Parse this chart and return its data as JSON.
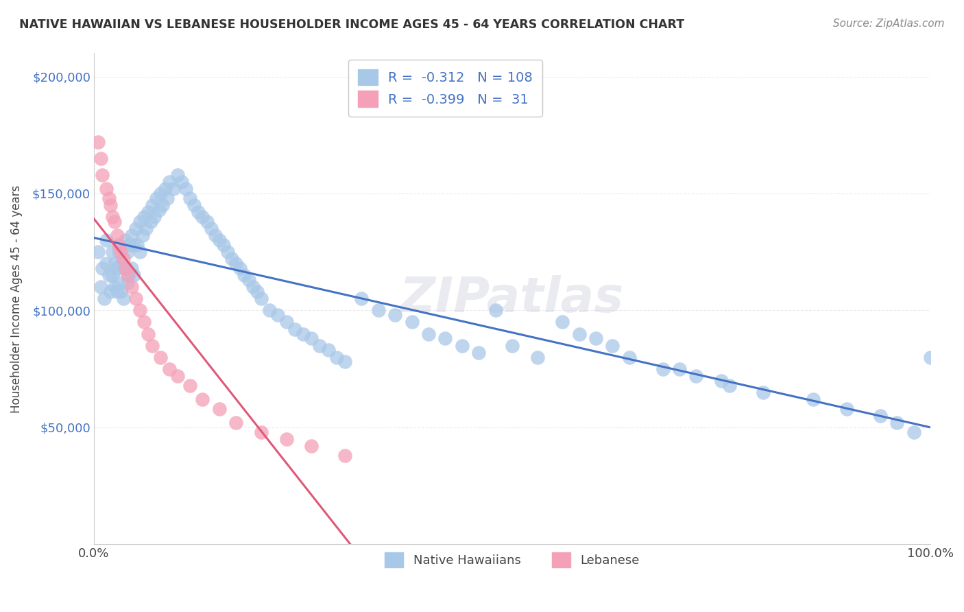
{
  "title": "NATIVE HAWAIIAN VS LEBANESE HOUSEHOLDER INCOME AGES 45 - 64 YEARS CORRELATION CHART",
  "source": "Source: ZipAtlas.com",
  "ylabel": "Householder Income Ages 45 - 64 years",
  "xlim": [
    0,
    1.0
  ],
  "ylim": [
    0,
    210000
  ],
  "ytick_labels": [
    "$50,000",
    "$100,000",
    "$150,000",
    "$200,000"
  ],
  "ytick_values": [
    50000,
    100000,
    150000,
    200000
  ],
  "background_color": "#ffffff",
  "grid_color": "#e8e8ee",
  "blue_color": "#a8c8e8",
  "pink_color": "#f4a0b8",
  "blue_line_color": "#4472c4",
  "pink_line_color": "#e05878",
  "dashed_line_color": "#c8c8d8",
  "native_hawaiian_x": [
    0.005,
    0.008,
    0.01,
    0.012,
    0.015,
    0.015,
    0.018,
    0.02,
    0.022,
    0.022,
    0.025,
    0.025,
    0.028,
    0.028,
    0.03,
    0.03,
    0.032,
    0.032,
    0.035,
    0.035,
    0.038,
    0.038,
    0.04,
    0.04,
    0.042,
    0.042,
    0.045,
    0.045,
    0.048,
    0.048,
    0.05,
    0.052,
    0.055,
    0.055,
    0.058,
    0.06,
    0.062,
    0.065,
    0.068,
    0.07,
    0.072,
    0.075,
    0.078,
    0.08,
    0.082,
    0.085,
    0.088,
    0.09,
    0.095,
    0.1,
    0.105,
    0.11,
    0.115,
    0.12,
    0.125,
    0.13,
    0.135,
    0.14,
    0.145,
    0.15,
    0.155,
    0.16,
    0.165,
    0.17,
    0.175,
    0.18,
    0.185,
    0.19,
    0.195,
    0.2,
    0.21,
    0.22,
    0.23,
    0.24,
    0.25,
    0.26,
    0.27,
    0.28,
    0.29,
    0.3,
    0.32,
    0.34,
    0.36,
    0.38,
    0.4,
    0.42,
    0.44,
    0.46,
    0.48,
    0.5,
    0.53,
    0.56,
    0.6,
    0.64,
    0.68,
    0.72,
    0.76,
    0.8,
    0.86,
    0.9,
    0.94,
    0.96,
    0.98,
    1.0,
    0.58,
    0.62,
    0.7,
    0.75
  ],
  "native_hawaiian_y": [
    125000,
    110000,
    118000,
    105000,
    130000,
    120000,
    115000,
    108000,
    125000,
    115000,
    120000,
    110000,
    118000,
    108000,
    125000,
    112000,
    120000,
    108000,
    118000,
    105000,
    130000,
    118000,
    125000,
    112000,
    128000,
    115000,
    132000,
    118000,
    128000,
    115000,
    135000,
    128000,
    138000,
    125000,
    132000,
    140000,
    135000,
    142000,
    138000,
    145000,
    140000,
    148000,
    143000,
    150000,
    145000,
    152000,
    148000,
    155000,
    152000,
    158000,
    155000,
    152000,
    148000,
    145000,
    142000,
    140000,
    138000,
    135000,
    132000,
    130000,
    128000,
    125000,
    122000,
    120000,
    118000,
    115000,
    113000,
    110000,
    108000,
    105000,
    100000,
    98000,
    95000,
    92000,
    90000,
    88000,
    85000,
    83000,
    80000,
    78000,
    105000,
    100000,
    98000,
    95000,
    90000,
    88000,
    85000,
    82000,
    100000,
    85000,
    80000,
    95000,
    88000,
    80000,
    75000,
    72000,
    68000,
    65000,
    62000,
    58000,
    55000,
    52000,
    48000,
    80000,
    90000,
    85000,
    75000,
    70000
  ],
  "lebanese_x": [
    0.005,
    0.008,
    0.01,
    0.015,
    0.018,
    0.02,
    0.022,
    0.025,
    0.028,
    0.03,
    0.032,
    0.035,
    0.038,
    0.04,
    0.045,
    0.05,
    0.055,
    0.06,
    0.065,
    0.07,
    0.08,
    0.09,
    0.1,
    0.115,
    0.13,
    0.15,
    0.17,
    0.2,
    0.23,
    0.26,
    0.3
  ],
  "lebanese_y": [
    172000,
    165000,
    158000,
    152000,
    148000,
    145000,
    140000,
    138000,
    132000,
    128000,
    125000,
    122000,
    118000,
    115000,
    110000,
    105000,
    100000,
    95000,
    90000,
    85000,
    80000,
    75000,
    72000,
    68000,
    62000,
    58000,
    52000,
    48000,
    45000,
    42000,
    38000
  ]
}
